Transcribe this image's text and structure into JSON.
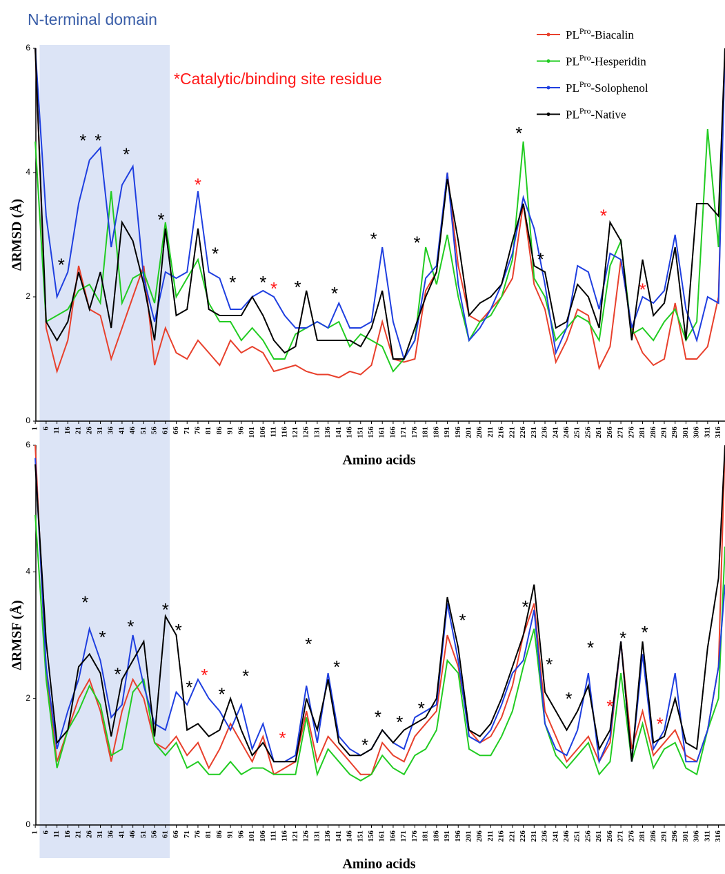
{
  "chart_data": [
    {
      "type": "line",
      "title": "N-terminal domain",
      "annotation": "*Catalytic/binding site residue",
      "annotation_color": "#ff1a1a",
      "title_color": "#3a5ea8",
      "highlight": {
        "x": [
          3,
          63
        ],
        "color": "#dce4f6"
      },
      "xlabel": "Amino acids",
      "ylabel": "ΔRMSD (Å)",
      "x": [
        1,
        6,
        11,
        16,
        21,
        26,
        31,
        36,
        41,
        46,
        51,
        56,
        61,
        66,
        71,
        76,
        81,
        86,
        91,
        96,
        101,
        106,
        111,
        116,
        121,
        126,
        131,
        136,
        141,
        146,
        151,
        156,
        161,
        166,
        171,
        176,
        181,
        186,
        191,
        196,
        201,
        206,
        211,
        216,
        221,
        226,
        231,
        236,
        241,
        246,
        251,
        256,
        261,
        266,
        271,
        276,
        281,
        286,
        291,
        296,
        301,
        306,
        311,
        316,
        319
      ],
      "xlim": [
        0,
        319
      ],
      "xticks": [
        1,
        6,
        11,
        16,
        21,
        26,
        31,
        36,
        41,
        46,
        51,
        56,
        61,
        66,
        71,
        76,
        81,
        86,
        91,
        96,
        101,
        106,
        111,
        116,
        121,
        126,
        131,
        136,
        141,
        146,
        151,
        156,
        161,
        166,
        171,
        176,
        181,
        186,
        191,
        196,
        201,
        206,
        211,
        216,
        221,
        226,
        231,
        236,
        241,
        246,
        251,
        256,
        261,
        266,
        271,
        276,
        281,
        286,
        291,
        296,
        301,
        306,
        311,
        316
      ],
      "ylim": [
        0,
        6
      ],
      "yticks": [
        0,
        2,
        4,
        6
      ],
      "legend": "top-right",
      "series": [
        {
          "name": "PLPro-Biacalin",
          "color": "#e8402c",
          "values": [
            6,
            1.5,
            0.8,
            1.3,
            2.5,
            1.8,
            1.7,
            1.0,
            1.5,
            2.0,
            2.5,
            0.9,
            1.5,
            1.1,
            1.0,
            1.3,
            1.1,
            0.9,
            1.3,
            1.1,
            1.2,
            1.1,
            0.8,
            0.85,
            0.9,
            0.8,
            0.75,
            0.75,
            0.7,
            0.8,
            0.75,
            0.9,
            1.6,
            1.0,
            0.95,
            1.0,
            2.1,
            2.4,
            4.0,
            2.5,
            1.7,
            1.6,
            1.8,
            2.0,
            2.3,
            3.5,
            2.2,
            1.8,
            0.95,
            1.3,
            1.8,
            1.7,
            0.85,
            1.2,
            2.6,
            1.5,
            1.1,
            0.9,
            1.0,
            1.9,
            1.0,
            1.0,
            1.2,
            2.0,
            6
          ]
        },
        {
          "name": "PLPro-Hesperidin",
          "color": "#22cc22",
          "values": [
            4.5,
            1.6,
            1.7,
            1.8,
            2.1,
            2.2,
            1.9,
            3.7,
            1.9,
            2.3,
            2.4,
            1.9,
            3.2,
            2.0,
            2.3,
            2.6,
            1.9,
            1.6,
            1.6,
            1.3,
            1.5,
            1.3,
            1.0,
            1.0,
            1.4,
            1.5,
            1.6,
            1.5,
            1.6,
            1.2,
            1.4,
            1.3,
            1.2,
            0.8,
            1.0,
            1.3,
            2.8,
            2.2,
            3.0,
            2.0,
            1.3,
            1.6,
            1.7,
            2.0,
            2.6,
            4.5,
            2.3,
            2.0,
            1.3,
            1.5,
            1.7,
            1.6,
            1.3,
            2.5,
            2.9,
            1.4,
            1.5,
            1.3,
            1.6,
            1.8,
            1.3,
            1.6,
            4.7,
            2.8,
            6
          ]
        },
        {
          "name": "PLPro-Solophenol",
          "color": "#1f3fe0",
          "values": [
            6,
            3.3,
            2.0,
            2.4,
            3.5,
            4.2,
            4.4,
            2.8,
            3.8,
            4.1,
            2.3,
            1.6,
            2.4,
            2.3,
            2.4,
            3.7,
            2.4,
            2.3,
            1.8,
            1.8,
            2.0,
            2.1,
            2.0,
            1.7,
            1.5,
            1.5,
            1.6,
            1.5,
            1.9,
            1.5,
            1.5,
            1.6,
            2.8,
            1.6,
            1.0,
            1.3,
            2.3,
            2.5,
            4.0,
            2.2,
            1.3,
            1.5,
            1.8,
            2.2,
            2.7,
            3.6,
            3.1,
            2.2,
            1.1,
            1.5,
            2.5,
            2.4,
            1.8,
            2.7,
            2.6,
            1.5,
            2.0,
            1.9,
            2.1,
            3.0,
            1.8,
            1.3,
            2.0,
            1.9,
            6
          ]
        },
        {
          "name": "PLPro-Native",
          "color": "#000000",
          "values": [
            6,
            1.6,
            1.3,
            1.6,
            2.4,
            1.8,
            2.4,
            1.5,
            3.2,
            2.9,
            2.2,
            1.3,
            3.1,
            1.7,
            1.8,
            3.1,
            1.8,
            1.7,
            1.7,
            1.7,
            2.0,
            1.7,
            1.3,
            1.1,
            1.2,
            2.1,
            1.3,
            1.3,
            1.3,
            1.3,
            1.2,
            1.5,
            2.1,
            1.0,
            1.0,
            1.5,
            2.0,
            2.4,
            3.9,
            2.9,
            1.7,
            1.9,
            2.0,
            2.2,
            2.9,
            3.5,
            2.5,
            2.4,
            1.5,
            1.6,
            2.2,
            2.0,
            1.5,
            3.2,
            2.9,
            1.3,
            2.6,
            1.7,
            1.9,
            2.8,
            1.3,
            3.5,
            3.5,
            3.3,
            6
          ]
        }
      ],
      "markers": [
        {
          "text": "*",
          "x": 13,
          "y": 2.58,
          "color": "#000000"
        },
        {
          "text": "*",
          "x": 23,
          "y": 4.58,
          "color": "#000000"
        },
        {
          "text": "*",
          "x": 30,
          "y": 4.58,
          "color": "#000000"
        },
        {
          "text": "*",
          "x": 43,
          "y": 4.36,
          "color": "#000000"
        },
        {
          "text": "*",
          "x": 59,
          "y": 3.31,
          "color": "#000000"
        },
        {
          "text": "*",
          "x": 76,
          "y": 3.87,
          "color": "#ff1a1a"
        },
        {
          "text": "*",
          "x": 84,
          "y": 2.76,
          "color": "#000000"
        },
        {
          "text": "*",
          "x": 92,
          "y": 2.3,
          "color": "#000000"
        },
        {
          "text": "*",
          "x": 106,
          "y": 2.3,
          "color": "#000000"
        },
        {
          "text": "*",
          "x": 111,
          "y": 2.2,
          "color": "#ff1a1a"
        },
        {
          "text": "*",
          "x": 122,
          "y": 2.22,
          "color": "#000000"
        },
        {
          "text": "*",
          "x": 139,
          "y": 2.12,
          "color": "#000000"
        },
        {
          "text": "*",
          "x": 157,
          "y": 3.0,
          "color": "#000000"
        },
        {
          "text": "*",
          "x": 177,
          "y": 2.94,
          "color": "#000000"
        },
        {
          "text": "*",
          "x": 224,
          "y": 4.7,
          "color": "#000000"
        },
        {
          "text": "*",
          "x": 234,
          "y": 2.67,
          "color": "#000000"
        },
        {
          "text": "*",
          "x": 263,
          "y": 3.37,
          "color": "#ff1a1a"
        },
        {
          "text": "*",
          "x": 281,
          "y": 2.18,
          "color": "#ff1a1a"
        }
      ]
    },
    {
      "type": "line",
      "highlight": {
        "x": [
          3,
          63
        ],
        "color": "#dce4f6"
      },
      "xlabel": "Amino acids",
      "ylabel": "ΔRMSF (Å)",
      "x": [
        1,
        6,
        11,
        16,
        21,
        26,
        31,
        36,
        41,
        46,
        51,
        56,
        61,
        66,
        71,
        76,
        81,
        86,
        91,
        96,
        101,
        106,
        111,
        116,
        121,
        126,
        131,
        136,
        141,
        146,
        151,
        156,
        161,
        166,
        171,
        176,
        181,
        186,
        191,
        196,
        201,
        206,
        211,
        216,
        221,
        226,
        231,
        236,
        241,
        246,
        251,
        256,
        261,
        266,
        271,
        276,
        281,
        286,
        291,
        296,
        301,
        306,
        311,
        316,
        319
      ],
      "xlim": [
        0,
        319
      ],
      "xticks": [
        1,
        6,
        11,
        16,
        21,
        26,
        31,
        36,
        41,
        46,
        51,
        56,
        61,
        66,
        71,
        76,
        81,
        86,
        91,
        96,
        101,
        106,
        111,
        116,
        121,
        126,
        131,
        136,
        141,
        146,
        151,
        156,
        161,
        166,
        171,
        176,
        181,
        186,
        191,
        196,
        201,
        206,
        211,
        216,
        221,
        226,
        231,
        236,
        241,
        246,
        251,
        256,
        261,
        266,
        271,
        276,
        281,
        286,
        291,
        296,
        301,
        306,
        311,
        316
      ],
      "ylim": [
        0,
        6
      ],
      "yticks": [
        0,
        2,
        4,
        6
      ],
      "series": [
        {
          "color": "#e8402c",
          "values": [
            6,
            2.4,
            1.0,
            1.5,
            2.0,
            2.3,
            1.8,
            1.0,
            1.8,
            2.3,
            2.0,
            1.3,
            1.2,
            1.4,
            1.1,
            1.3,
            0.9,
            1.2,
            1.6,
            1.3,
            1.0,
            1.4,
            0.8,
            0.9,
            1.0,
            1.8,
            1.0,
            1.4,
            1.2,
            1.0,
            0.8,
            0.8,
            1.3,
            1.1,
            1.0,
            1.4,
            1.6,
            1.8,
            3.0,
            2.5,
            1.5,
            1.3,
            1.4,
            1.7,
            2.2,
            3.0,
            3.5,
            1.8,
            1.4,
            1.0,
            1.2,
            1.4,
            1.0,
            1.3,
            2.9,
            1.2,
            1.8,
            1.1,
            1.3,
            1.5,
            1.1,
            1.0,
            1.5,
            2.5,
            6
          ]
        },
        {
          "color": "#22cc22",
          "values": [
            4.9,
            2.3,
            0.9,
            1.5,
            1.8,
            2.2,
            1.9,
            1.1,
            1.2,
            2.1,
            2.3,
            1.3,
            1.1,
            1.3,
            0.9,
            1.0,
            0.8,
            0.8,
            1.0,
            0.8,
            0.9,
            0.9,
            0.8,
            0.8,
            0.8,
            1.7,
            0.8,
            1.2,
            1.0,
            0.8,
            0.7,
            0.8,
            1.1,
            0.9,
            0.8,
            1.1,
            1.2,
            1.5,
            2.6,
            2.4,
            1.2,
            1.1,
            1.1,
            1.4,
            1.8,
            2.5,
            3.1,
            1.6,
            1.1,
            0.9,
            1.1,
            1.3,
            0.8,
            1.0,
            2.4,
            1.0,
            1.6,
            0.9,
            1.2,
            1.3,
            0.9,
            0.8,
            1.5,
            2.0,
            4.4
          ]
        },
        {
          "color": "#1f3fe0",
          "values": [
            5.8,
            2.5,
            1.2,
            1.8,
            2.3,
            3.1,
            2.6,
            1.7,
            1.9,
            3.0,
            2.2,
            1.6,
            1.5,
            2.1,
            1.9,
            2.3,
            2.0,
            1.8,
            1.5,
            1.9,
            1.2,
            1.6,
            1.0,
            1.0,
            1.1,
            2.2,
            1.3,
            2.4,
            1.4,
            1.2,
            1.1,
            1.2,
            1.5,
            1.3,
            1.2,
            1.7,
            1.8,
            1.9,
            3.5,
            2.6,
            1.4,
            1.3,
            1.5,
            1.9,
            2.4,
            2.6,
            3.4,
            1.6,
            1.2,
            1.1,
            1.5,
            2.4,
            1.0,
            1.4,
            2.9,
            1.0,
            2.7,
            1.2,
            1.5,
            2.4,
            1.0,
            1.0,
            1.5,
            2.5,
            3.8
          ]
        },
        {
          "color": "#000000",
          "values": [
            5.7,
            2.9,
            1.3,
            1.5,
            2.5,
            2.7,
            2.4,
            1.4,
            2.3,
            2.6,
            2.9,
            1.4,
            3.3,
            3.0,
            1.5,
            1.6,
            1.4,
            1.5,
            2.0,
            1.5,
            1.1,
            1.3,
            1.0,
            1.0,
            1.0,
            2.0,
            1.5,
            2.3,
            1.3,
            1.1,
            1.1,
            1.2,
            1.5,
            1.3,
            1.5,
            1.6,
            1.7,
            2.0,
            3.6,
            2.8,
            1.5,
            1.4,
            1.6,
            2.0,
            2.5,
            3.0,
            3.8,
            2.1,
            1.8,
            1.5,
            1.8,
            2.2,
            1.2,
            1.5,
            2.9,
            1.0,
            2.9,
            1.3,
            1.4,
            2.0,
            1.3,
            1.2,
            2.8,
            3.9,
            6
          ]
        }
      ],
      "markers": [
        {
          "text": "*",
          "x": 24,
          "y": 3.58,
          "color": "#000000"
        },
        {
          "text": "*",
          "x": 32,
          "y": 3.03,
          "color": "#000000"
        },
        {
          "text": "*",
          "x": 39,
          "y": 2.45,
          "color": "#000000"
        },
        {
          "text": "*",
          "x": 45,
          "y": 3.2,
          "color": "#000000"
        },
        {
          "text": "*",
          "x": 61,
          "y": 3.47,
          "color": "#000000"
        },
        {
          "text": "*",
          "x": 67,
          "y": 3.14,
          "color": "#000000"
        },
        {
          "text": "*",
          "x": 72,
          "y": 2.24,
          "color": "#000000"
        },
        {
          "text": "*",
          "x": 79,
          "y": 2.43,
          "color": "#ff1a1a"
        },
        {
          "text": "*",
          "x": 87,
          "y": 2.13,
          "color": "#000000"
        },
        {
          "text": "*",
          "x": 98,
          "y": 2.42,
          "color": "#000000"
        },
        {
          "text": "*",
          "x": 115,
          "y": 1.44,
          "color": "#ff1a1a"
        },
        {
          "text": "*",
          "x": 127,
          "y": 2.92,
          "color": "#000000"
        },
        {
          "text": "*",
          "x": 140,
          "y": 2.56,
          "color": "#000000"
        },
        {
          "text": "*",
          "x": 153,
          "y": 1.33,
          "color": "#000000"
        },
        {
          "text": "*",
          "x": 159,
          "y": 1.77,
          "color": "#000000"
        },
        {
          "text": "*",
          "x": 169,
          "y": 1.69,
          "color": "#000000"
        },
        {
          "text": "*",
          "x": 179,
          "y": 1.91,
          "color": "#000000"
        },
        {
          "text": "*",
          "x": 198,
          "y": 3.3,
          "color": "#000000"
        },
        {
          "text": "*",
          "x": 227,
          "y": 3.51,
          "color": "#000000"
        },
        {
          "text": "*",
          "x": 238,
          "y": 2.6,
          "color": "#000000"
        },
        {
          "text": "*",
          "x": 247,
          "y": 2.06,
          "color": "#000000"
        },
        {
          "text": "*",
          "x": 257,
          "y": 2.87,
          "color": "#000000"
        },
        {
          "text": "*",
          "x": 266,
          "y": 1.94,
          "color": "#ff1a1a"
        },
        {
          "text": "*",
          "x": 272,
          "y": 3.02,
          "color": "#000000"
        },
        {
          "text": "*",
          "x": 282,
          "y": 3.11,
          "color": "#000000"
        },
        {
          "text": "*",
          "x": 289,
          "y": 1.66,
          "color": "#ff1a1a"
        }
      ]
    }
  ]
}
